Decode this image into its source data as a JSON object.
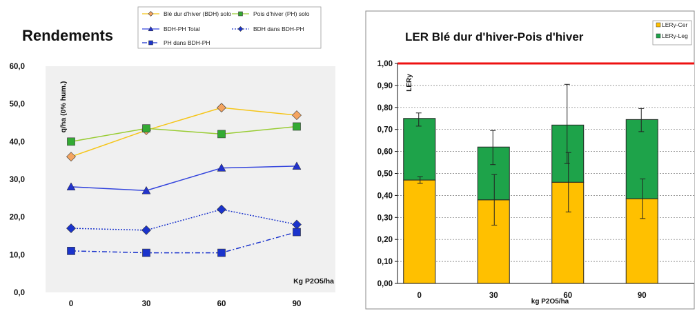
{
  "chart_data": [
    {
      "type": "line",
      "title": "Rendements",
      "xlabel": "Kg P2O5/ha",
      "ylabel": "q/ha (0% hum.)",
      "categories": [
        "0",
        "30",
        "60",
        "90"
      ],
      "ylim": [
        0,
        60
      ],
      "yticks": [
        "0,0",
        "10,0",
        "20,0",
        "30,0",
        "40,0",
        "50,0",
        "60,0"
      ],
      "grid": false,
      "legend_position": "top",
      "series": [
        {
          "name": "Blé dur d'hiver (BDH) solo",
          "values": [
            36,
            43,
            49,
            47
          ],
          "color": "#f5c518",
          "marker": "diamond",
          "marker_color": "#f4a460",
          "dash": "solid"
        },
        {
          "name": "Pois d'hiver (PH) solo",
          "values": [
            40,
            43.5,
            42,
            44
          ],
          "color": "#99cc33",
          "marker": "square",
          "marker_color": "#33aa33",
          "dash": "solid"
        },
        {
          "name": "BDH-PH Total",
          "values": [
            28,
            27,
            33,
            33.5
          ],
          "color": "#3344dd",
          "marker": "triangle",
          "marker_color": "#2233cc",
          "dash": "solid"
        },
        {
          "name": "BDH dans BDH-PH",
          "values": [
            17,
            16.5,
            22,
            18
          ],
          "color": "#1a33cc",
          "marker": "diamond",
          "marker_color": "#1a33cc",
          "dash": "dotted"
        },
        {
          "name": "PH dans BDH-PH",
          "values": [
            11,
            10.5,
            10.5,
            16
          ],
          "color": "#1a33cc",
          "marker": "square",
          "marker_color": "#1a33cc",
          "dash": "dashdot"
        }
      ]
    },
    {
      "type": "bar",
      "stacked": true,
      "title": "LER Blé dur d'hiver-Pois d'hiver",
      "xlabel": "kg P2O5/ha",
      "ylabel": "LERy",
      "categories": [
        "0",
        "30",
        "60",
        "90"
      ],
      "ylim": [
        0,
        1.0
      ],
      "yticks": [
        "0,00",
        "0,10",
        "0,20",
        "0,30",
        "0,40",
        "0,50",
        "0,60",
        "0,70",
        "0,80",
        "0,90",
        "1,00"
      ],
      "grid": true,
      "reference_line": 1.0,
      "reference_color": "#ee1111",
      "legend_position": "top-right",
      "series": [
        {
          "name": "LERy-Cer",
          "values": [
            0.47,
            0.38,
            0.46,
            0.385
          ],
          "color": "#ffc000",
          "error": [
            [
              0.455,
              0.485
            ],
            [
              0.265,
              0.495
            ],
            [
              0.325,
              0.595
            ],
            [
              0.295,
              0.475
            ]
          ]
        },
        {
          "name": "LERy-Leg",
          "values": [
            0.28,
            0.24,
            0.26,
            0.36
          ],
          "color": "#1ea34a",
          "error": [
            [
              0.715,
              0.775
            ],
            [
              0.54,
              0.695
            ],
            [
              0.545,
              0.905
            ],
            [
              0.69,
              0.795
            ]
          ]
        }
      ]
    }
  ]
}
